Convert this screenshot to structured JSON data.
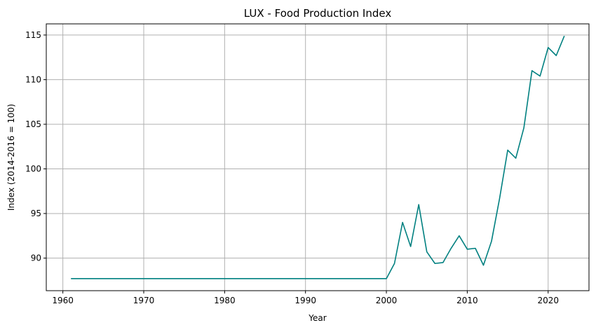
{
  "chart_data": {
    "type": "line",
    "title": "LUX - Food Production Index",
    "xlabel": "Year",
    "ylabel": "Index (2014-2016 = 100)",
    "xlim": [
      1957.95,
      2025.05
    ],
    "ylim": [
      86.35,
      116.25
    ],
    "xticks": [
      1960,
      1970,
      1980,
      1990,
      2000,
      2010,
      2020
    ],
    "yticks": [
      90,
      95,
      100,
      105,
      110,
      115
    ],
    "grid": true,
    "legend": "none",
    "line_color": "#008080",
    "series": [
      {
        "x": [
          1961,
          1962,
          1963,
          1964,
          1965,
          1966,
          1967,
          1968,
          1969,
          1970,
          1971,
          1972,
          1973,
          1974,
          1975,
          1976,
          1977,
          1978,
          1979,
          1980,
          1981,
          1982,
          1983,
          1984,
          1985,
          1986,
          1987,
          1988,
          1989,
          1990,
          1991,
          1992,
          1993,
          1994,
          1995,
          1996,
          1997,
          1998,
          1999,
          2000,
          2001,
          2002,
          2003,
          2004,
          2005,
          2006,
          2007,
          2008,
          2009,
          2010,
          2011,
          2012,
          2013,
          2014,
          2015,
          2016,
          2017,
          2018,
          2019,
          2020,
          2021,
          2022
        ],
        "values": [
          87.7,
          87.7,
          87.7,
          87.7,
          87.7,
          87.7,
          87.7,
          87.7,
          87.7,
          87.7,
          87.7,
          87.7,
          87.7,
          87.7,
          87.7,
          87.7,
          87.7,
          87.7,
          87.7,
          87.7,
          87.7,
          87.7,
          87.7,
          87.7,
          87.7,
          87.7,
          87.7,
          87.7,
          87.7,
          87.7,
          87.7,
          87.7,
          87.7,
          87.7,
          87.7,
          87.7,
          87.7,
          87.7,
          87.7,
          87.7,
          89.4,
          94.0,
          91.3,
          96.0,
          90.7,
          89.4,
          89.5,
          91.1,
          92.5,
          91.0,
          91.1,
          89.2,
          91.9,
          96.7,
          102.1,
          101.2,
          104.6,
          111.0,
          110.4,
          113.6,
          112.7,
          114.9
        ]
      }
    ]
  }
}
